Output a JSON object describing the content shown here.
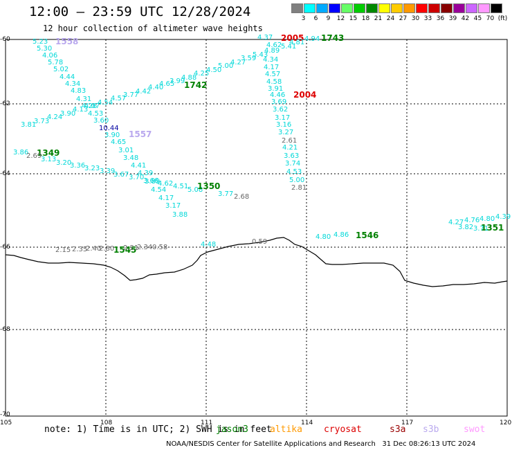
{
  "header": {
    "title": "12:00 – 23:59 UTC 12/28/2024",
    "subtitle": "12 hour collection of altimeter wave heights"
  },
  "legend": {
    "unit": "(ft)",
    "levels": [
      {
        "label": "3",
        "color": "#808080"
      },
      {
        "label": "6",
        "color": "#00ffff"
      },
      {
        "label": "9",
        "color": "#00aaff"
      },
      {
        "label": "12",
        "color": "#0000ff"
      },
      {
        "label": "15",
        "color": "#66ff66"
      },
      {
        "label": "18",
        "color": "#00cc00"
      },
      {
        "label": "21",
        "color": "#008800"
      },
      {
        "label": "24",
        "color": "#ffff00"
      },
      {
        "label": "27",
        "color": "#ffcc00"
      },
      {
        "label": "30",
        "color": "#ff9900"
      },
      {
        "label": "33",
        "color": "#ff0000"
      },
      {
        "label": "36",
        "color": "#cc0000"
      },
      {
        "label": "39",
        "color": "#880000"
      },
      {
        "label": "42",
        "color": "#990099"
      },
      {
        "label": "45",
        "color": "#cc66ff"
      },
      {
        "label": "70",
        "color": "#ff99ff"
      },
      {
        "label": "",
        "color": "#000000"
      }
    ]
  },
  "axes": {
    "lat_labels": [
      "-60",
      "-62",
      "-64",
      "-66",
      "-68",
      "-70"
    ],
    "lon_labels": [
      "105",
      "108",
      "111",
      "114",
      "117",
      "120"
    ]
  },
  "passes": [
    {
      "tag": "1558",
      "tag_color": "lavender",
      "values": [
        "5.23",
        "5.30",
        "4.06",
        "5.78",
        "5.02",
        "4.44",
        "4.34",
        "4.83",
        "4.31",
        "4.26",
        "4.53",
        "3.60",
        "10.44",
        "3.90",
        "4.65",
        "3.01",
        "3.48",
        "4.41",
        "4.39",
        "3.89",
        "4.54",
        "4.17",
        "3.17",
        "3.88"
      ]
    },
    {
      "tag": "1742",
      "tag_color": "green",
      "values": [
        "3.81",
        "3.73",
        "4.24",
        "3.90",
        "4.13",
        "4.07",
        "4.54",
        "4.57",
        "3.77",
        "4.42",
        "4.40",
        "4.65",
        "3.99",
        "4.88",
        "4.25",
        "4.50",
        "5.00",
        "4.27",
        "3.59",
        "5.43",
        "4.89"
      ]
    },
    {
      "tag": "2005",
      "tag_color": "red",
      "values": [
        "4.37",
        "4.94",
        "4.81",
        "4.62",
        "5.41",
        "4.34",
        "4.17",
        "4.57",
        "4.58",
        "3.91",
        "4.46",
        "3.69",
        "3.62",
        "3.17",
        "3.16",
        "3.27"
      ]
    },
    {
      "tag": "1743",
      "tag_color": "green",
      "values": []
    },
    {
      "tag": "2004",
      "tag_color": "red",
      "values": [
        "2.61",
        "4.21",
        "3.63",
        "3.74",
        "4.53",
        "5.00",
        "2.81"
      ]
    },
    {
      "tag": "1557",
      "tag_color": "lavender",
      "values": []
    },
    {
      "tag": "1349",
      "tag_color": "green",
      "values": [
        "3.86",
        "2.69",
        "3.13",
        "3.20",
        "3.36",
        "3.23",
        "3.39",
        "3.67",
        "3.70",
        "3.66",
        "4.62",
        "4.51",
        "5.08",
        "3.77",
        "2.68"
      ]
    },
    {
      "tag": "1350",
      "tag_color": "green",
      "values": []
    },
    {
      "tag": "1545",
      "tag_color": "green",
      "values": [
        "2.15",
        "2.35",
        "2.40",
        "2.80",
        "2.21",
        "2.34",
        "0.58",
        "4.48",
        "0.59"
      ]
    },
    {
      "tag": "1546",
      "tag_color": "green",
      "values": [
        "4.80",
        "4.86"
      ]
    },
    {
      "tag": "1351",
      "tag_color": "green",
      "values": [
        "4.27",
        "4.76",
        "4.80",
        "4.39",
        "3.82",
        "3.71"
      ]
    }
  ],
  "footer": {
    "note": "note: 1) Time is in UTC; 2) SWH is in feet",
    "satellites": [
      {
        "name": "jason3",
        "color": "#008000"
      },
      {
        "name": "altika",
        "color": "#ff9900"
      },
      {
        "name": "cryosat",
        "color": "#dd0000"
      },
      {
        "name": "s3a",
        "color": "#990000"
      },
      {
        "name": "s3b",
        "color": "#b9a8ee"
      },
      {
        "name": "swot",
        "color": "#ff99ff"
      }
    ],
    "credit": "NOAA/NESDIS Center for Satellite Applications and Research",
    "timestamp": "31 Dec 08:26:13 UTC 2024"
  }
}
